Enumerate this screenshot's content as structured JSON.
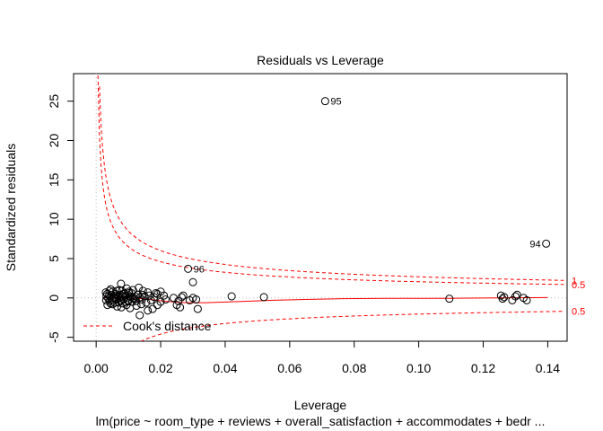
{
  "chart_data": {
    "type": "scatter",
    "title": "Residuals vs Leverage",
    "xlabel": "Leverage",
    "ylabel": "Standardized residuals",
    "subtitle": "lm(price ~ room_type + reviews + overall_satisfaction + accommodates + bedr ...",
    "xlim": [
      -0.007,
      0.146
    ],
    "ylim": [
      -5.5,
      28.5
    ],
    "x_ticks": [
      0.0,
      0.02,
      0.04,
      0.06,
      0.08,
      0.1,
      0.12,
      0.14
    ],
    "x_tick_labels": [
      "0.00",
      "0.02",
      "0.04",
      "0.06",
      "0.08",
      "0.10",
      "0.12",
      "0.14"
    ],
    "y_ticks": [
      -5,
      0,
      5,
      10,
      15,
      20,
      25
    ],
    "y_tick_labels": [
      "-5",
      "0",
      "5",
      "10",
      "15",
      "20",
      "25"
    ],
    "grid": false,
    "legend": {
      "position": "bottom-left",
      "entries": [
        {
          "label": "Cook's distance",
          "style": "dashed",
          "color": "#ff0000"
        }
      ]
    },
    "labeled_points": [
      {
        "label": "95",
        "x": 0.071,
        "y": 25.0
      },
      {
        "label": "94",
        "x": 0.1395,
        "y": 6.9
      },
      {
        "label": "96",
        "x": 0.0285,
        "y": 3.7
      }
    ],
    "points": [
      {
        "x": 0.071,
        "y": 25.0
      },
      {
        "x": 0.1395,
        "y": 6.9
      },
      {
        "x": 0.0285,
        "y": 3.7
      },
      {
        "x": 0.03,
        "y": 2.0
      },
      {
        "x": 0.0077,
        "y": 1.8
      },
      {
        "x": 0.003,
        "y": 0.7
      },
      {
        "x": 0.004,
        "y": 0.3
      },
      {
        "x": 0.005,
        "y": -0.2
      },
      {
        "x": 0.006,
        "y": 0.5
      },
      {
        "x": 0.007,
        "y": -0.6
      },
      {
        "x": 0.008,
        "y": 0.9
      },
      {
        "x": 0.009,
        "y": 0.1
      },
      {
        "x": 0.01,
        "y": -0.4
      },
      {
        "x": 0.011,
        "y": 0.6
      },
      {
        "x": 0.012,
        "y": -0.1
      },
      {
        "x": 0.013,
        "y": 0.4
      },
      {
        "x": 0.014,
        "y": -0.8
      },
      {
        "x": 0.015,
        "y": 0.2
      },
      {
        "x": 0.016,
        "y": 0.7
      },
      {
        "x": 0.017,
        "y": -0.3
      },
      {
        "x": 0.018,
        "y": 0.1
      },
      {
        "x": 0.019,
        "y": 0.5
      },
      {
        "x": 0.02,
        "y": -0.5
      },
      {
        "x": 0.021,
        "y": 0.3
      },
      {
        "x": 0.0035,
        "y": -0.9
      },
      {
        "x": 0.0045,
        "y": 1.1
      },
      {
        "x": 0.0055,
        "y": 0.0
      },
      {
        "x": 0.0065,
        "y": -1.1
      },
      {
        "x": 0.0075,
        "y": 0.4
      },
      {
        "x": 0.0085,
        "y": -0.2
      },
      {
        "x": 0.0095,
        "y": 1.2
      },
      {
        "x": 0.0105,
        "y": -1.3
      },
      {
        "x": 0.0115,
        "y": 0.0
      },
      {
        "x": 0.0125,
        "y": -1.0
      },
      {
        "x": 0.0135,
        "y": -2.2
      },
      {
        "x": 0.0145,
        "y": 0.9
      },
      {
        "x": 0.0155,
        "y": -0.6
      },
      {
        "x": 0.0165,
        "y": 0.3
      },
      {
        "x": 0.0175,
        "y": -1.4
      },
      {
        "x": 0.0185,
        "y": 0.6
      },
      {
        "x": 0.0032,
        "y": 0.2
      },
      {
        "x": 0.0042,
        "y": -0.4
      },
      {
        "x": 0.0052,
        "y": 0.8
      },
      {
        "x": 0.0062,
        "y": -0.1
      },
      {
        "x": 0.0072,
        "y": 1.0
      },
      {
        "x": 0.0082,
        "y": -0.7
      },
      {
        "x": 0.0092,
        "y": 0.3
      },
      {
        "x": 0.0102,
        "y": 0.8
      },
      {
        "x": 0.0112,
        "y": -0.5
      },
      {
        "x": 0.0122,
        "y": 0.2
      },
      {
        "x": 0.0132,
        "y": 1.3
      },
      {
        "x": 0.0142,
        "y": -0.2
      },
      {
        "x": 0.0038,
        "y": -0.1
      },
      {
        "x": 0.0048,
        "y": 0.4
      },
      {
        "x": 0.0058,
        "y": -0.6
      },
      {
        "x": 0.0068,
        "y": 0.2
      },
      {
        "x": 0.0078,
        "y": -1.2
      },
      {
        "x": 0.0088,
        "y": 0.6
      },
      {
        "x": 0.0098,
        "y": -0.3
      },
      {
        "x": 0.0108,
        "y": 0.1
      },
      {
        "x": 0.0034,
        "y": 0.5
      },
      {
        "x": 0.0044,
        "y": -0.7
      },
      {
        "x": 0.0054,
        "y": 0.1
      },
      {
        "x": 0.0064,
        "y": 0.9
      },
      {
        "x": 0.0074,
        "y": -0.3
      },
      {
        "x": 0.0084,
        "y": 0.5
      },
      {
        "x": 0.0094,
        "y": -0.9
      },
      {
        "x": 0.0104,
        "y": 0.2
      },
      {
        "x": 0.0114,
        "y": 1.0
      },
      {
        "x": 0.0124,
        "y": -0.4
      },
      {
        "x": 0.0134,
        "y": 0.0
      },
      {
        "x": 0.0144,
        "y": 0.4
      },
      {
        "x": 0.0031,
        "y": -0.3
      },
      {
        "x": 0.0041,
        "y": 0.9
      },
      {
        "x": 0.0051,
        "y": -0.8
      },
      {
        "x": 0.0061,
        "y": 0.3
      },
      {
        "x": 0.0071,
        "y": 0.0
      },
      {
        "x": 0.0081,
        "y": 0.2
      },
      {
        "x": 0.0091,
        "y": -0.5
      },
      {
        "x": 0.0101,
        "y": 0.6
      },
      {
        "x": 0.016,
        "y": -1.6
      },
      {
        "x": 0.019,
        "y": -0.9
      },
      {
        "x": 0.02,
        "y": 0.8
      },
      {
        "x": 0.0215,
        "y": -0.2
      },
      {
        "x": 0.024,
        "y": 0.0
      },
      {
        "x": 0.025,
        "y": -0.9
      },
      {
        "x": 0.0255,
        "y": -0.4
      },
      {
        "x": 0.026,
        "y": -1.2
      },
      {
        "x": 0.0265,
        "y": 0.1
      },
      {
        "x": 0.027,
        "y": 0.3
      },
      {
        "x": 0.029,
        "y": -0.3
      },
      {
        "x": 0.03,
        "y": 0.0
      },
      {
        "x": 0.031,
        "y": -0.2
      },
      {
        "x": 0.0315,
        "y": -1.4
      },
      {
        "x": 0.042,
        "y": 0.2
      },
      {
        "x": 0.052,
        "y": 0.1
      },
      {
        "x": 0.1095,
        "y": -0.1
      },
      {
        "x": 0.1255,
        "y": 0.3
      },
      {
        "x": 0.126,
        "y": -0.1
      },
      {
        "x": 0.1265,
        "y": 0.1
      },
      {
        "x": 0.129,
        "y": -0.3
      },
      {
        "x": 0.13,
        "y": 0.2
      },
      {
        "x": 0.1305,
        "y": 0.4
      },
      {
        "x": 0.1325,
        "y": 0.0
      },
      {
        "x": 0.1335,
        "y": -0.3
      }
    ],
    "loess_line": [
      [
        0.002,
        0.0
      ],
      [
        0.008,
        0.05
      ],
      [
        0.013,
        -0.05
      ],
      [
        0.018,
        -0.25
      ],
      [
        0.022,
        -0.45
      ],
      [
        0.028,
        -0.6
      ],
      [
        0.034,
        -0.6
      ],
      [
        0.045,
        -0.45
      ],
      [
        0.055,
        -0.3
      ],
      [
        0.065,
        -0.2
      ],
      [
        0.075,
        -0.1
      ],
      [
        0.09,
        -0.05
      ],
      [
        0.11,
        -0.05
      ],
      [
        0.125,
        0.0
      ],
      [
        0.14,
        0.05
      ]
    ],
    "cooks_contours": [
      {
        "label": "1",
        "level": 1,
        "c": 0.85
      },
      {
        "label": "0.5",
        "level": 0.5,
        "c": 0.65
      }
    ],
    "cooks_contour_negative": {
      "label": "0.5",
      "level": 0.5,
      "c": -0.65
    }
  }
}
